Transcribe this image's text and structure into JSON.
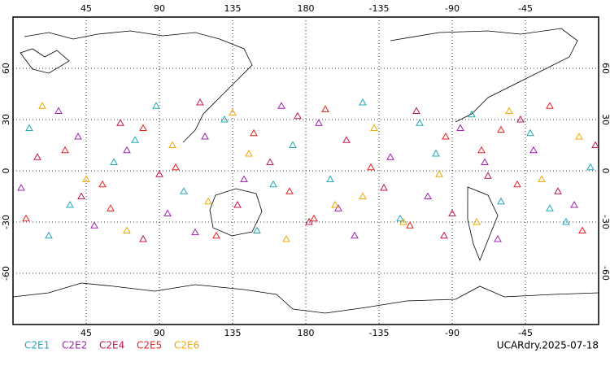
{
  "chart_data": {
    "type": "scatter",
    "annotation": "UCARdry.2025-07-18",
    "xlim": [
      0,
      360
    ],
    "ylim": [
      -90,
      90
    ],
    "xticks": [
      45,
      90,
      135,
      180,
      {
        "value": 225,
        "label": "-135"
      },
      {
        "value": 270,
        "label": "-90"
      },
      {
        "value": 315,
        "label": "-45"
      }
    ],
    "yticks": [
      -60,
      -30,
      0,
      30,
      60
    ],
    "grid": true,
    "series": [
      {
        "name": "C2E1",
        "color": "#20a8b8",
        "x": [
          10,
          35,
          62,
          88,
          105,
          130,
          150,
          172,
          195,
          215,
          238,
          260,
          282,
          300,
          318,
          340,
          355,
          22,
          75,
          160,
          250,
          330
        ],
        "values": [
          25,
          -20,
          5,
          38,
          -12,
          30,
          -35,
          15,
          -5,
          40,
          -28,
          10,
          33,
          -18,
          22,
          -30,
          2,
          -38,
          18,
          -8,
          28,
          -22
        ]
      },
      {
        "name": "C2E2",
        "color": "#a020b0",
        "x": [
          5,
          28,
          50,
          70,
          95,
          118,
          142,
          165,
          188,
          210,
          232,
          255,
          275,
          298,
          320,
          345,
          40,
          112,
          200,
          290
        ],
        "values": [
          -10,
          35,
          -32,
          12,
          -25,
          20,
          -5,
          38,
          28,
          -38,
          8,
          -15,
          25,
          -40,
          12,
          -20,
          20,
          -36,
          -22,
          5
        ]
      },
      {
        "name": "C2E4",
        "color": "#c01848",
        "x": [
          15,
          42,
          66,
          90,
          115,
          138,
          158,
          182,
          205,
          228,
          248,
          270,
          292,
          312,
          335,
          358,
          80,
          175,
          265
        ],
        "values": [
          8,
          -15,
          28,
          -2,
          40,
          -20,
          5,
          -30,
          18,
          -10,
          35,
          -25,
          -3,
          30,
          -12,
          15,
          -40,
          32,
          -38
        ]
      },
      {
        "name": "C2E5",
        "color": "#e82020",
        "x": [
          8,
          32,
          55,
          80,
          100,
          125,
          148,
          170,
          192,
          220,
          244,
          266,
          288,
          310,
          330,
          350,
          60,
          185,
          300
        ],
        "values": [
          -28,
          12,
          -8,
          25,
          2,
          -38,
          22,
          -12,
          36,
          2,
          -32,
          20,
          12,
          -8,
          38,
          -35,
          -22,
          -28,
          24
        ]
      },
      {
        "name": "C2E6",
        "color": "#f0a800",
        "x": [
          18,
          45,
          70,
          98,
          120,
          145,
          168,
          198,
          222,
          240,
          262,
          285,
          305,
          325,
          348,
          135,
          215
        ],
        "values": [
          38,
          -5,
          -35,
          15,
          -18,
          10,
          -40,
          -20,
          25,
          -30,
          -2,
          -30,
          35,
          -5,
          20,
          34,
          -15
        ]
      }
    ]
  }
}
